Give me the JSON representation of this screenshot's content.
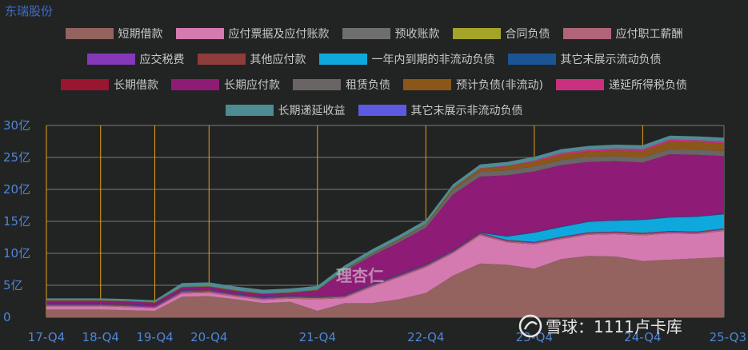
{
  "title": "东瑞股份",
  "colors": {
    "axis_text": "#4f86d8",
    "grid_h": "#7a7a7a",
    "grid_v": "#e8a318",
    "watermark": "#e6e6e6"
  },
  "watermark": {
    "logo_icon": "xueqiu-snowball-logo-icon",
    "text": "雪球：1111卢卡库",
    "center_text": "理杏仁"
  },
  "chart_data": {
    "type": "area",
    "stacked": true,
    "ylim": [
      0,
      30
    ],
    "yticks": [
      0,
      5,
      10,
      15,
      20,
      25,
      30
    ],
    "ytick_labels": [
      "0",
      "5亿",
      "10亿",
      "15亿",
      "20亿",
      "25亿",
      "30亿"
    ],
    "x_points": [
      "17-Q4",
      "18-Q2",
      "18-Q4",
      "19-Q2",
      "19-Q4",
      "20-Q2",
      "20-Q4",
      "21-Q1",
      "21-Q2",
      "21-Q3",
      "21-Q4",
      "22-Q1",
      "22-Q2",
      "22-Q3",
      "22-Q4",
      "23-Q1",
      "23-Q2",
      "23-Q3",
      "23-Q4",
      "24-Q1",
      "24-Q2",
      "24-Q3",
      "24-Q4",
      "25-Q1",
      "25-Q2",
      "25-Q3"
    ],
    "xtick_labels": [
      "17-Q4",
      "18-Q4",
      "19-Q4",
      "20-Q4",
      "21-Q4",
      "22-Q4",
      "23-Q4",
      "24-Q4",
      "25-Q3"
    ],
    "grid": true,
    "legend_position": "top",
    "legend_rows": [
      [
        "短期借款",
        "应付票据及应付账款",
        "预收账款",
        "合同负债",
        "应付职工薪酬"
      ],
      [
        "应交税费",
        "其他应付款",
        "一年内到期的非流动负债",
        "其它未展示流动负债"
      ],
      [
        "长期借款",
        "长期应付款",
        "租赁负债",
        "预计负债(非流动)",
        "递延所得税负债"
      ],
      [
        "长期递延收益",
        "其它未展示非流动负债"
      ]
    ],
    "series": [
      {
        "name": "短期借款",
        "color": "#94625f",
        "values": [
          1.2,
          1.2,
          1.2,
          1.1,
          1.0,
          3.2,
          3.3,
          2.8,
          2.2,
          2.4,
          1.0,
          2.2,
          2.2,
          2.8,
          3.8,
          6.5,
          8.4,
          8.2,
          7.6,
          9.1,
          9.6,
          9.5,
          8.8,
          9.0,
          9.2,
          9.4
        ]
      },
      {
        "name": "应付票据及应付账款",
        "color": "#d47ab0",
        "values": [
          0.5,
          0.5,
          0.5,
          0.5,
          0.4,
          0.5,
          0.5,
          0.4,
          0.5,
          0.5,
          1.8,
          0.8,
          2.5,
          3.4,
          4.0,
          3.5,
          4.4,
          3.5,
          3.8,
          3.1,
          3.3,
          3.5,
          4.0,
          4.1,
          3.8,
          4.1
        ]
      },
      {
        "name": "预收账款",
        "color": "#6e6e6e",
        "values": [
          0,
          0,
          0,
          0,
          0,
          0,
          0,
          0,
          0,
          0,
          0,
          0,
          0,
          0,
          0,
          0,
          0,
          0,
          0,
          0,
          0,
          0,
          0,
          0,
          0,
          0
        ]
      },
      {
        "name": "合同负债",
        "color": "#a3a428",
        "values": [
          0,
          0,
          0,
          0,
          0,
          0,
          0,
          0,
          0,
          0,
          0,
          0,
          0,
          0,
          0,
          0,
          0,
          0,
          0,
          0,
          0,
          0,
          0,
          0,
          0,
          0
        ]
      },
      {
        "name": "应付职工薪酬",
        "color": "#b06477",
        "values": [
          0.15,
          0.15,
          0.15,
          0.15,
          0.15,
          0.2,
          0.2,
          0.2,
          0.2,
          0.2,
          0.2,
          0.2,
          0.2,
          0.2,
          0.2,
          0.2,
          0.2,
          0.2,
          0.2,
          0.2,
          0.2,
          0.2,
          0.2,
          0.2,
          0.2,
          0.2
        ]
      },
      {
        "name": "应交税费",
        "color": "#8538b8",
        "values": [
          0.1,
          0.1,
          0.1,
          0.1,
          0.1,
          0.15,
          0.15,
          0.1,
          0.1,
          0.1,
          0.1,
          0.1,
          0.1,
          0.1,
          0.1,
          0.1,
          0.1,
          0.1,
          0.1,
          0.1,
          0.1,
          0.1,
          0.1,
          0.1,
          0.1,
          0.1
        ]
      },
      {
        "name": "其他应付款",
        "color": "#8f3c3c",
        "values": [
          0.1,
          0.1,
          0.1,
          0.1,
          0.1,
          0.1,
          0.1,
          0.1,
          0.1,
          0.1,
          0.1,
          0.1,
          0.1,
          0.1,
          0.1,
          0.1,
          0.1,
          0.1,
          0.1,
          0.1,
          0.1,
          0.1,
          0.1,
          0.1,
          0.1,
          0.1
        ]
      },
      {
        "name": "一年内到期的非流动负债",
        "color": "#0fa8dc",
        "values": [
          0,
          0,
          0,
          0,
          0,
          0,
          0,
          0,
          0,
          0,
          0,
          0,
          0,
          0,
          0,
          0,
          0,
          0.5,
          1.4,
          1.5,
          1.6,
          1.7,
          2.0,
          2.1,
          2.3,
          2.2
        ]
      },
      {
        "name": "其它未展示流动负债",
        "color": "#1a5495",
        "values": [
          0.1,
          0.1,
          0.1,
          0.1,
          0.1,
          0.1,
          0.1,
          0.1,
          0.1,
          0.1,
          0.1,
          0.1,
          0.1,
          0.1,
          0.1,
          0.1,
          0.1,
          0.1,
          0.1,
          0.1,
          0.1,
          0.1,
          0.1,
          0.1,
          0.1,
          0.1
        ]
      },
      {
        "name": "长期借款",
        "color": "#9a1530",
        "values": [
          0,
          0,
          0,
          0,
          0,
          0,
          0,
          0,
          0,
          0,
          0,
          0,
          0,
          0,
          0,
          0,
          0,
          0,
          0,
          0,
          0,
          0,
          0,
          0,
          0,
          0
        ]
      },
      {
        "name": "长期应付款",
        "color": "#8e1b76",
        "values": [
          0.4,
          0.4,
          0.4,
          0.4,
          0.4,
          0.4,
          0.4,
          0.4,
          0.4,
          0.4,
          0.9,
          3.7,
          4.4,
          5.0,
          5.7,
          8.7,
          8.7,
          9.5,
          9.5,
          9.6,
          9.3,
          9.2,
          8.9,
          9.8,
          9.6,
          9.0
        ]
      },
      {
        "name": "租赁负债",
        "color": "#6a6464",
        "values": [
          0,
          0,
          0,
          0,
          0,
          0,
          0,
          0,
          0,
          0,
          0,
          0.2,
          0.3,
          0.4,
          0.5,
          0.7,
          0.8,
          0.8,
          0.8,
          0.8,
          0.8,
          0.8,
          0.8,
          0.8,
          0.8,
          0.8
        ]
      },
      {
        "name": "预计负债(非流动)",
        "color": "#8b5718",
        "values": [
          0.1,
          0.1,
          0.1,
          0.1,
          0.1,
          0.1,
          0.1,
          0.1,
          0.1,
          0.1,
          0.1,
          0.1,
          0.1,
          0.1,
          0.1,
          0.3,
          0.4,
          0.6,
          0.7,
          0.8,
          0.8,
          0.9,
          1.0,
          1.2,
          1.2,
          1.2
        ]
      },
      {
        "name": "递延所得税负债",
        "color": "#c9307f",
        "values": [
          0,
          0,
          0,
          0,
          0,
          0,
          0,
          0,
          0,
          0,
          0,
          0,
          0,
          0,
          0,
          0,
          0.1,
          0.1,
          0.2,
          0.3,
          0.3,
          0.3,
          0.3,
          0.3,
          0.3,
          0.3
        ]
      },
      {
        "name": "长期递延收益",
        "color": "#4e8c93",
        "values": [
          0.3,
          0.3,
          0.3,
          0.3,
          0.3,
          0.6,
          0.6,
          0.6,
          0.6,
          0.6,
          0.6,
          0.6,
          0.6,
          0.6,
          0.6,
          0.6,
          0.6,
          0.6,
          0.6,
          0.6,
          0.6,
          0.6,
          0.6,
          0.6,
          0.6,
          0.6
        ]
      },
      {
        "name": "其它未展示非流动负债",
        "color": "#5a5be0",
        "values": [
          0,
          0,
          0,
          0,
          0,
          0,
          0,
          0,
          0,
          0,
          0,
          0,
          0,
          0,
          0,
          0,
          0,
          0,
          0,
          0,
          0,
          0,
          0,
          0,
          0,
          0
        ]
      }
    ]
  }
}
